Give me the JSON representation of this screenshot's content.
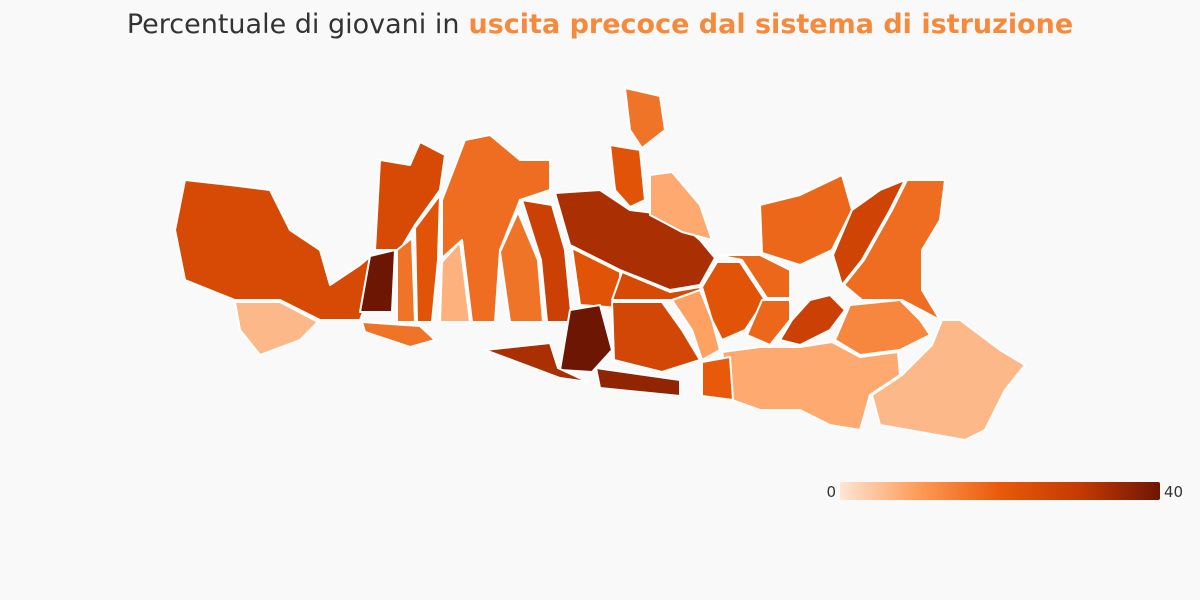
{
  "chart_data": {
    "type": "choropleth",
    "title": "Percentuale di giovani in",
    "title_highlight": "uscita precoce dal sistema di istruzione",
    "title_color": "#333333",
    "highlight_color": "#f58a3c",
    "clim": [
      0,
      40
    ],
    "colorbar_ticks": [
      0,
      40
    ],
    "colors": [
      "#fde5d6",
      "#fd9a55",
      "#e85a0a",
      "#c43a02",
      "#6e1604"
    ],
    "values": [
      25,
      6,
      25,
      40,
      16,
      22,
      17,
      7,
      16,
      28,
      33,
      22,
      16,
      8,
      22,
      40,
      33,
      36,
      26,
      25,
      9,
      22,
      18,
      18,
      27,
      17,
      28,
      13,
      6,
      8,
      20,
      18,
      16
    ]
  }
}
